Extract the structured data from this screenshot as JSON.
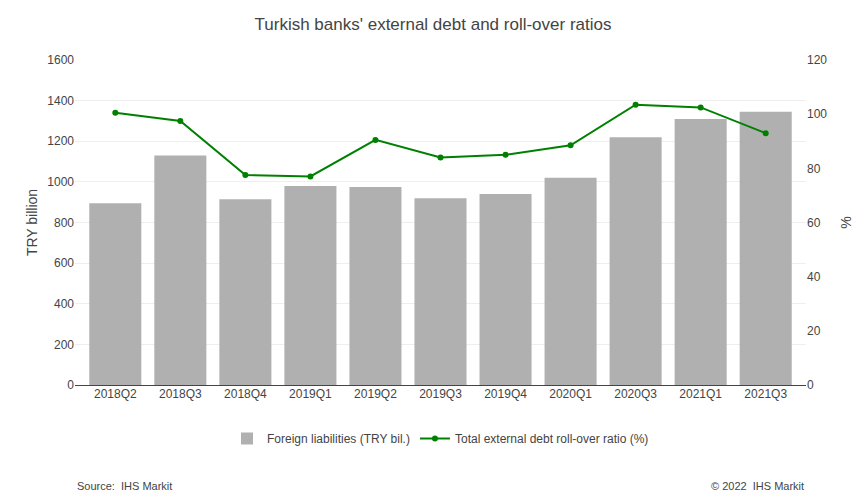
{
  "chart_data": {
    "type": "bar",
    "title": "Turkish banks' external debt and roll-over ratios",
    "categories": [
      "2018Q2",
      "2018Q3",
      "2018Q4",
      "2019Q1",
      "2019Q2",
      "2019Q3",
      "2019Q4",
      "2020Q1",
      "2020Q3",
      "2021Q1",
      "2021Q3"
    ],
    "series": [
      {
        "name": "Foreign liabilities (TRY bil.)",
        "type": "bar",
        "color": "#b0b0b0",
        "values": [
          895,
          1130,
          915,
          980,
          975,
          920,
          940,
          1020,
          1220,
          1310,
          1345
        ]
      },
      {
        "name": "Total external debt roll-over ratio (%)",
        "type": "line",
        "color": "#008000",
        "marker": "circle",
        "axis": "y2",
        "values": [
          100.5,
          97.5,
          77.5,
          77.0,
          90.5,
          84.0,
          85.0,
          88.5,
          103.5,
          102.5,
          93.0
        ]
      }
    ],
    "ylim": [
      0,
      1600
    ],
    "yticks": [
      0,
      200,
      400,
      600,
      800,
      1000,
      1200,
      1400,
      1600
    ],
    "y2lim": [
      0,
      120
    ],
    "y2ticks": [
      0,
      20,
      40,
      60,
      80,
      100,
      120
    ],
    "ylabel": "TRY billion",
    "y2label": "%",
    "grid": true,
    "legend": "bottom",
    "annotations": [
      "Source:  IHS Markit",
      "© 2022  IHS Markit"
    ]
  }
}
